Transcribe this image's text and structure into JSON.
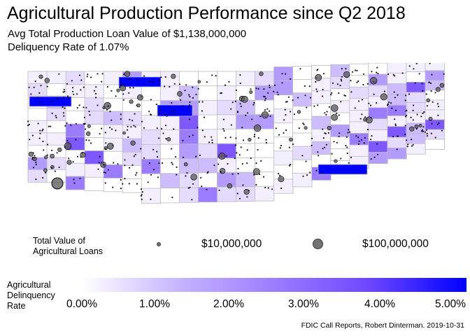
{
  "title": "Agricultural Production Performance since Q2 2018",
  "subtitle_line1": "Avg Total Production Loan Value of $1,138,000,000",
  "subtitle_line2": "Deliquency Rate of 1.07%",
  "size_legend": {
    "title_line1": "Total Value of",
    "title_line2": "Agricultural Loans",
    "small_label": "$10,000,000",
    "large_label": "$100,000,000"
  },
  "color_legend": {
    "title_line1": "Agricultural",
    "title_line2": "Delinquency",
    "title_line3": "Rate",
    "ticks": [
      "0.00%",
      "1.00%",
      "2.00%",
      "3.00%",
      "4.00%",
      "5.00%"
    ],
    "low_color": "#ffffff",
    "high_color": "#0000ff"
  },
  "caption": "FDIC Call Reports, Robert Dinterman. 2019-10-31",
  "colors": {
    "county_border": "#bbbbbb",
    "bank_point": "#000000",
    "bank_point_large": "#555555"
  }
}
